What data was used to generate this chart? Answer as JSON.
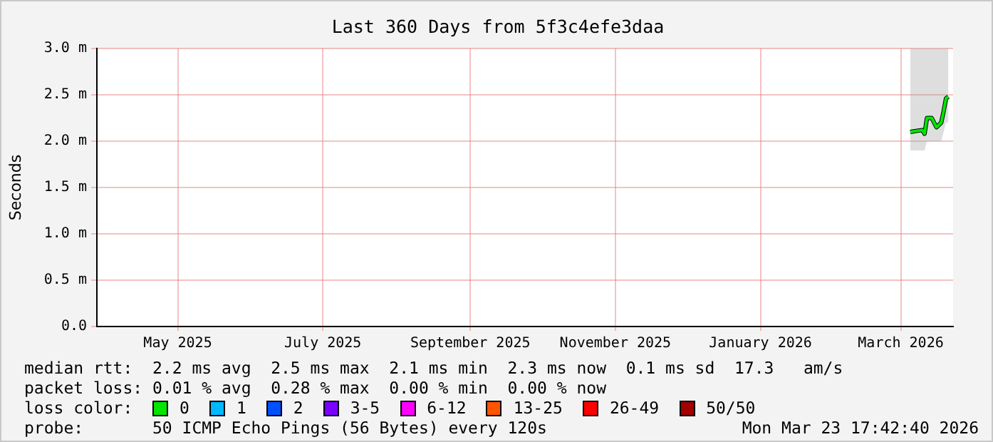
{
  "chart_data": {
    "type": "line",
    "title": "Last 360 Days from 5f3c4efe3daa",
    "ylabel": "Seconds",
    "legend_title": "loss color:",
    "legend": "bottom",
    "grid": true,
    "x": [
      "2026-03-05",
      "2026-03-10",
      "2026-03-11",
      "2026-03-12",
      "2026-03-14",
      "2026-03-16",
      "2026-03-18",
      "2026-03-19",
      "2026-03-20",
      "2026-03-21"
    ],
    "xlim": [
      "2025-03-28",
      "2026-03-23"
    ],
    "xticks": [
      {
        "value": "2025-05-01",
        "label": "May 2025"
      },
      {
        "value": "2025-07-01",
        "label": "July 2025"
      },
      {
        "value": "2025-09-01",
        "label": "September 2025"
      },
      {
        "value": "2025-11-01",
        "label": "November 2025"
      },
      {
        "value": "2026-01-01",
        "label": "January 2026"
      },
      {
        "value": "2026-03-01",
        "label": "March 2026"
      }
    ],
    "ylim": [
      0,
      3
    ],
    "yticks": [
      {
        "value": 0,
        "label": "0.0"
      },
      {
        "value": 0.5,
        "label": "0.5 m"
      },
      {
        "value": 1,
        "label": "1.0 m"
      },
      {
        "value": 1.5,
        "label": "1.5 m"
      },
      {
        "value": 2,
        "label": "2.0 m"
      },
      {
        "value": 2.5,
        "label": "2.5 m"
      },
      {
        "value": 3,
        "label": "3.0 m"
      }
    ],
    "series": [
      {
        "name": "0",
        "color": "#00e600",
        "values": [
          2.1,
          2.12,
          2.08,
          2.25,
          2.25,
          2.15,
          2.2,
          2.32,
          2.46,
          2.48
        ],
        "lower": [
          1.9,
          1.9,
          1.9,
          2.0,
          2.0,
          2.0,
          2.0,
          2.1,
          2.2,
          2.2
        ],
        "upper": [
          3.0,
          3.0,
          3.0,
          3.0,
          3.0,
          3.0,
          3.0,
          3.0,
          3.0,
          3.0
        ]
      },
      {
        "name": "1",
        "color": "#00b8ff",
        "values": [
          null,
          null,
          null,
          null,
          null,
          null,
          null,
          null,
          null,
          null
        ]
      },
      {
        "name": "2",
        "color": "#0050ff",
        "values": [
          null,
          null,
          null,
          null,
          null,
          null,
          null,
          null,
          null,
          null
        ]
      },
      {
        "name": "3-5",
        "color": "#7a00ff",
        "values": [
          null,
          null,
          null,
          null,
          null,
          null,
          null,
          null,
          null,
          null
        ]
      },
      {
        "name": "6-12",
        "color": "#ff00ff",
        "values": [
          null,
          null,
          null,
          null,
          null,
          null,
          null,
          null,
          null,
          null
        ]
      },
      {
        "name": "13-25",
        "color": "#ff5500",
        "values": [
          null,
          null,
          null,
          null,
          null,
          null,
          null,
          null,
          null,
          null
        ]
      },
      {
        "name": "26-49",
        "color": "#ff0000",
        "values": [
          null,
          null,
          null,
          null,
          null,
          null,
          null,
          null,
          null,
          null
        ]
      },
      {
        "name": "50/50",
        "color": "#a00000",
        "values": [
          null,
          null,
          null,
          null,
          null,
          null,
          null,
          null,
          null,
          null
        ]
      }
    ],
    "annotations": [
      "median rtt:  2.2 ms avg  2.5 ms max  2.1 ms min  2.3 ms now  0.1 ms sd  17.3   am/s",
      "packet loss: 0.01 % avg  0.28 % max  0.00 % min  0.00 % now",
      "probe:       50 ICMP Echo Pings (56 Bytes) every 120s",
      "Mon Mar 23 17:42:40 2026"
    ]
  }
}
